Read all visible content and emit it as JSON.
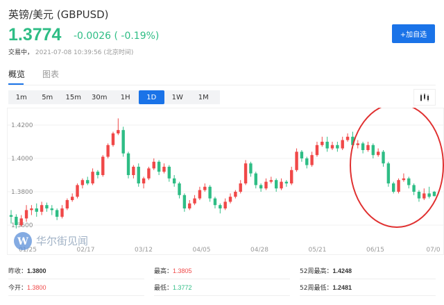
{
  "header": {
    "title": "英镑/美元  (GBPUSD)",
    "price": "1.3774",
    "change": "-0.0026 ( -0.19%)",
    "status_label": "交易中，",
    "timestamp": "2021-07-08 10:39:56  (北京时间)",
    "add_watchlist_label": "+加自选"
  },
  "tabs": [
    {
      "label": "概览",
      "active": true
    },
    {
      "label": "图表",
      "active": false
    }
  ],
  "intervals": [
    {
      "label": "1m"
    },
    {
      "label": "5m"
    },
    {
      "label": "15m"
    },
    {
      "label": "30m"
    },
    {
      "label": "1H"
    },
    {
      "label": "1D",
      "active": true
    },
    {
      "label": "1W"
    },
    {
      "label": "1M"
    }
  ],
  "chart_type_icon": "candlestick-icon",
  "watermark": "华尔街见闻",
  "colors": {
    "up": "#f04848",
    "down": "#2ebd85",
    "accent": "#1a73e8",
    "annotation": "#e03030"
  },
  "chart_data": {
    "type": "candlestick",
    "y_ticks": [
      "1.4200",
      "1.4000",
      "1.3800",
      "1.3600"
    ],
    "y_tick_values": [
      1.42,
      1.4,
      1.38,
      1.36
    ],
    "ylim": [
      1.355,
      1.4275
    ],
    "x_ticks": [
      "01/25",
      "02/17",
      "03/12",
      "04/05",
      "04/28",
      "05/21",
      "06/15",
      "07/0"
    ],
    "grid": true,
    "annotation": "red ellipse highlighting June–July decline",
    "ohlc": [
      [
        1.366,
        1.369,
        1.361,
        1.365
      ],
      [
        1.365,
        1.3665,
        1.358,
        1.36
      ],
      [
        1.36,
        1.366,
        1.359,
        1.364
      ],
      [
        1.364,
        1.372,
        1.362,
        1.369
      ],
      [
        1.369,
        1.372,
        1.366,
        1.37
      ],
      [
        1.37,
        1.373,
        1.365,
        1.368
      ],
      [
        1.368,
        1.374,
        1.366,
        1.372
      ],
      [
        1.372,
        1.3735,
        1.368,
        1.37
      ],
      [
        1.37,
        1.372,
        1.366,
        1.369
      ],
      [
        1.369,
        1.37,
        1.363,
        1.365
      ],
      [
        1.365,
        1.372,
        1.364,
        1.37
      ],
      [
        1.37,
        1.376,
        1.369,
        1.375
      ],
      [
        1.375,
        1.379,
        1.374,
        1.377
      ],
      [
        1.377,
        1.385,
        1.376,
        1.384
      ],
      [
        1.384,
        1.388,
        1.382,
        1.387
      ],
      [
        1.387,
        1.389,
        1.384,
        1.385
      ],
      [
        1.385,
        1.394,
        1.384,
        1.392
      ],
      [
        1.392,
        1.393,
        1.388,
        1.39
      ],
      [
        1.39,
        1.402,
        1.389,
        1.401
      ],
      [
        1.401,
        1.409,
        1.4,
        1.408
      ],
      [
        1.408,
        1.416,
        1.407,
        1.415
      ],
      [
        1.415,
        1.424,
        1.414,
        1.417
      ],
      [
        1.417,
        1.419,
        1.401,
        1.403
      ],
      [
        1.403,
        1.404,
        1.388,
        1.39
      ],
      [
        1.39,
        1.396,
        1.388,
        1.395
      ],
      [
        1.395,
        1.397,
        1.383,
        1.385
      ],
      [
        1.385,
        1.389,
        1.382,
        1.388
      ],
      [
        1.388,
        1.395,
        1.387,
        1.394
      ],
      [
        1.394,
        1.4,
        1.393,
        1.398
      ],
      [
        1.398,
        1.399,
        1.39,
        1.392
      ],
      [
        1.392,
        1.397,
        1.391,
        1.395
      ],
      [
        1.395,
        1.396,
        1.386,
        1.388
      ],
      [
        1.388,
        1.39,
        1.383,
        1.385
      ],
      [
        1.385,
        1.386,
        1.376,
        1.378
      ],
      [
        1.378,
        1.379,
        1.368,
        1.37
      ],
      [
        1.37,
        1.375,
        1.369,
        1.373
      ],
      [
        1.373,
        1.378,
        1.372,
        1.376
      ],
      [
        1.376,
        1.383,
        1.375,
        1.381
      ],
      [
        1.381,
        1.385,
        1.38,
        1.383
      ],
      [
        1.383,
        1.384,
        1.374,
        1.376
      ],
      [
        1.376,
        1.377,
        1.37,
        1.372
      ],
      [
        1.372,
        1.373,
        1.367,
        1.37
      ],
      [
        1.37,
        1.376,
        1.369,
        1.374
      ],
      [
        1.374,
        1.379,
        1.373,
        1.377
      ],
      [
        1.377,
        1.381,
        1.376,
        1.38
      ],
      [
        1.38,
        1.387,
        1.379,
        1.385
      ],
      [
        1.385,
        1.399,
        1.384,
        1.397
      ],
      [
        1.397,
        1.398,
        1.389,
        1.391
      ],
      [
        1.391,
        1.392,
        1.382,
        1.384
      ],
      [
        1.384,
        1.385,
        1.38,
        1.382
      ],
      [
        1.382,
        1.388,
        1.381,
        1.386
      ],
      [
        1.386,
        1.389,
        1.385,
        1.387
      ],
      [
        1.387,
        1.388,
        1.38,
        1.382
      ],
      [
        1.382,
        1.388,
        1.381,
        1.386
      ],
      [
        1.386,
        1.387,
        1.383,
        1.385
      ],
      [
        1.385,
        1.395,
        1.384,
        1.393
      ],
      [
        1.393,
        1.406,
        1.392,
        1.404
      ],
      [
        1.404,
        1.405,
        1.398,
        1.4
      ],
      [
        1.4,
        1.401,
        1.394,
        1.396
      ],
      [
        1.396,
        1.404,
        1.395,
        1.402
      ],
      [
        1.402,
        1.41,
        1.401,
        1.408
      ],
      [
        1.408,
        1.413,
        1.407,
        1.41
      ],
      [
        1.41,
        1.413,
        1.404,
        1.406
      ],
      [
        1.406,
        1.41,
        1.405,
        1.408
      ],
      [
        1.408,
        1.41,
        1.404,
        1.406
      ],
      [
        1.406,
        1.413,
        1.405,
        1.411
      ],
      [
        1.411,
        1.415,
        1.41,
        1.413
      ],
      [
        1.413,
        1.416,
        1.406,
        1.408
      ],
      [
        1.408,
        1.411,
        1.406,
        1.409
      ],
      [
        1.409,
        1.41,
        1.403,
        1.405
      ],
      [
        1.405,
        1.41,
        1.404,
        1.408
      ],
      [
        1.408,
        1.409,
        1.4,
        1.402
      ],
      [
        1.402,
        1.406,
        1.401,
        1.404
      ],
      [
        1.404,
        1.405,
        1.395,
        1.397
      ],
      [
        1.397,
        1.398,
        1.383,
        1.385
      ],
      [
        1.385,
        1.386,
        1.379,
        1.38
      ],
      [
        1.38,
        1.388,
        1.379,
        1.387
      ],
      [
        1.387,
        1.391,
        1.386,
        1.388
      ],
      [
        1.388,
        1.389,
        1.382,
        1.384
      ],
      [
        1.384,
        1.385,
        1.378,
        1.38
      ],
      [
        1.38,
        1.381,
        1.374,
        1.376
      ],
      [
        1.376,
        1.382,
        1.375,
        1.379
      ],
      [
        1.379,
        1.383,
        1.376,
        1.377
      ],
      [
        1.38,
        1.3805,
        1.3772,
        1.3774
      ]
    ]
  },
  "stats": [
    {
      "label": "昨收：",
      "value": "1.3800",
      "tone": "neutral"
    },
    {
      "label": "最高：",
      "value": "1.3805",
      "tone": "up"
    },
    {
      "label": "52周最高：",
      "value": "1.4248",
      "tone": "neutral"
    },
    {
      "label": "今开：",
      "value": "1.3800",
      "tone": "up"
    },
    {
      "label": "最低：",
      "value": "1.3772",
      "tone": "down"
    },
    {
      "label": "52周最低：",
      "value": "1.2481",
      "tone": "neutral"
    }
  ]
}
